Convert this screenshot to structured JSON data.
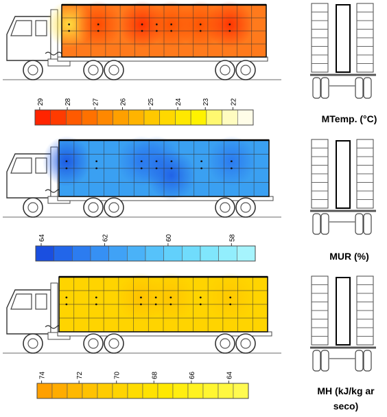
{
  "panels": [
    {
      "id": "temperature",
      "caption": "MTemp. (°C)",
      "ticks": [
        "29",
        "28",
        "27",
        "26",
        "25",
        "24",
        "23",
        "22"
      ],
      "scale_colors": [
        "#ff2400",
        "#ff3b00",
        "#ff5a00",
        "#ff7100",
        "#ff8800",
        "#ffa000",
        "#ffb400",
        "#ffc800",
        "#ffd800",
        "#ffe800",
        "#fff200",
        "#fff870",
        "#fffcc0",
        "#fffde8"
      ],
      "trailer_base": "#ff7a1c",
      "hot_color": "#ff2e00",
      "hot_spots": [
        {
          "cell": [
            0,
            1
          ],
          "color": "#ffe040"
        },
        {
          "cell": [
            2,
            1
          ],
          "color": "#ff4800"
        },
        {
          "cell": [
            5,
            1
          ],
          "color": "#ff3000"
        },
        {
          "cell": [
            7,
            1
          ],
          "color": "#ff5000"
        },
        {
          "cell": [
            9,
            1
          ],
          "color": "#ff5000"
        },
        {
          "cell": [
            11,
            1
          ],
          "color": "#ff3000"
        }
      ]
    },
    {
      "id": "humidity",
      "caption": "MUR (%)",
      "ticks": [
        "64",
        "62",
        "60",
        "58"
      ],
      "scale_colors": [
        "#1a4fe0",
        "#2266ea",
        "#2c7cf0",
        "#3690f4",
        "#40a2f6",
        "#4ab2f8",
        "#56c2fa",
        "#62d0fb",
        "#70dcfc",
        "#80e6fc",
        "#92eefd",
        "#a6f4fd"
      ],
      "trailer_base": "#3aa0f2",
      "hot_color": "#1c5fe8",
      "hot_spots": [
        {
          "cell": [
            0,
            1
          ],
          "color": "#1c58e2"
        },
        {
          "cell": [
            5,
            1
          ],
          "color": "#2a78ee"
        },
        {
          "cell": [
            6,
            1
          ],
          "color": "#2a78ee"
        },
        {
          "cell": [
            7,
            2
          ],
          "color": "#2060e6"
        },
        {
          "cell": [
            11,
            1
          ],
          "color": "#2a78ee"
        }
      ]
    },
    {
      "id": "enthalpy",
      "caption": "MH (kJ/kg ar seco)",
      "ticks": [
        "74",
        "72",
        "70",
        "68",
        "66",
        "64"
      ],
      "scale_colors": [
        "#ffa000",
        "#ffac00",
        "#ffb800",
        "#ffc200",
        "#ffcc00",
        "#ffd400",
        "#ffdc00",
        "#ffe200",
        "#ffe800",
        "#ffee10",
        "#fff220",
        "#fff630",
        "#fff840",
        "#fffa50"
      ],
      "trailer_base": "#ffd400",
      "hot_color": "#ffbb00",
      "hot_spots": [
        {
          "cell": [
            5,
            1
          ],
          "color": "#ffc000"
        },
        {
          "cell": [
            7,
            1
          ],
          "color": "#ffc400"
        },
        {
          "cell": [
            11,
            1
          ],
          "color": "#ffc800"
        }
      ]
    }
  ]
}
